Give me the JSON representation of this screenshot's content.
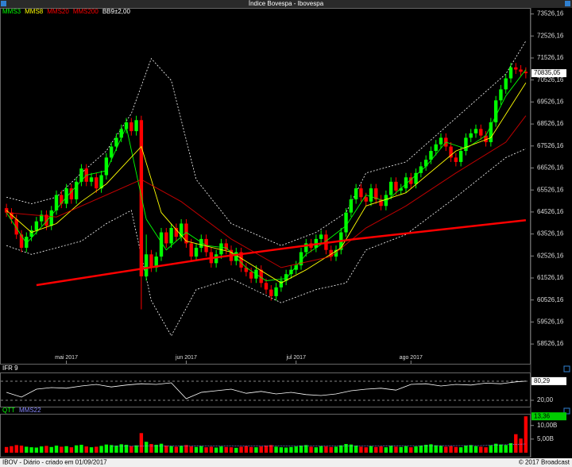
{
  "title": "Índice Bovespa - Ibovespa",
  "footer": {
    "left": "IBOV - Diário - criado em 01/09/2017",
    "right": "© 2017 Broadcast"
  },
  "chart_data": [
    {
      "type": "candlestick",
      "xlim": [
        -0.5,
        104.5
      ],
      "xticks": [
        {
          "value": 12,
          "label": "mai 2017"
        },
        {
          "value": 36,
          "label": "jun 2017"
        },
        {
          "value": 58,
          "label": "jul 2017"
        },
        {
          "value": 81,
          "label": "ago 2017"
        }
      ],
      "ylim": [
        57700,
        73800
      ],
      "yticks": [
        {
          "value": 73526.16,
          "label": "73526,16"
        },
        {
          "value": 72526.16,
          "label": "72526,16"
        },
        {
          "value": 71526.16,
          "label": "71526,16"
        },
        {
          "value": 70526.16,
          "label": "70526,16"
        },
        {
          "value": 69526.16,
          "label": "69526,16"
        },
        {
          "value": 68526.16,
          "label": "68526,16"
        },
        {
          "value": 67526.16,
          "label": "67526,16"
        },
        {
          "value": 66526.16,
          "label": "66526,16"
        },
        {
          "value": 65526.16,
          "label": "65526,16"
        },
        {
          "value": 64526.16,
          "label": "64526,16"
        },
        {
          "value": 63526.16,
          "label": "63526,16"
        },
        {
          "value": 62526.16,
          "label": "62526,16"
        },
        {
          "value": 61526.16,
          "label": "61526,16"
        },
        {
          "value": 60526.16,
          "label": "60526,16"
        },
        {
          "value": 59526.16,
          "label": "59526,16"
        },
        {
          "value": 58526.16,
          "label": "58526,16"
        }
      ],
      "up_color": "#00ff00",
      "down_color": "#ff0000",
      "open": [
        64700,
        64500,
        64200,
        63500,
        62900,
        63400,
        63700,
        64100,
        64400,
        63900,
        64600,
        65300,
        64900,
        65600,
        65100,
        65900,
        66500,
        65900,
        66100,
        65600,
        66200,
        67000,
        67500,
        67900,
        68300,
        68600,
        68200,
        68700,
        61600,
        62600,
        62000,
        62500,
        63600,
        63100,
        63800,
        63400,
        64000,
        63100,
        62500,
        62900,
        63300,
        62700,
        62200,
        62600,
        63100,
        62800,
        62300,
        62700,
        62000,
        61800,
        61500,
        61900,
        61300,
        61000,
        60700,
        61100,
        61400,
        61700,
        61900,
        62100,
        62700,
        63100,
        62900,
        63300,
        63500,
        62800,
        62500,
        62800,
        63600,
        64500,
        65100,
        65600,
        65200,
        65000,
        65600,
        65100,
        64800,
        65300,
        65900,
        65500,
        65600,
        66100,
        65800,
        66300,
        66600,
        66900,
        67300,
        67600,
        67900,
        67500,
        67000,
        66800,
        67300,
        67900,
        68100,
        68300,
        68000,
        67700,
        68600,
        69600,
        70100,
        70600,
        71100,
        71000,
        70900
      ],
      "high": [
        64900,
        64700,
        64400,
        63700,
        63600,
        63900,
        64300,
        64600,
        64600,
        64800,
        65500,
        65500,
        65800,
        65800,
        66100,
        66700,
        66700,
        66300,
        66300,
        66400,
        67200,
        67700,
        68100,
        68500,
        68800,
        68800,
        68900,
        68900,
        63500,
        62800,
        62700,
        63800,
        63800,
        64000,
        64000,
        64200,
        64200,
        63300,
        63100,
        63500,
        63500,
        62900,
        62800,
        63300,
        63300,
        63000,
        62900,
        62900,
        62200,
        62000,
        62100,
        62100,
        61500,
        61200,
        61300,
        61600,
        61900,
        62100,
        62300,
        62900,
        63300,
        63300,
        63500,
        63700,
        63700,
        63000,
        63000,
        63800,
        64700,
        65300,
        65800,
        65800,
        65400,
        65800,
        65800,
        65300,
        65500,
        66100,
        66100,
        65800,
        66300,
        66300,
        66500,
        66800,
        67100,
        67500,
        67800,
        68100,
        68100,
        67700,
        67200,
        67500,
        68100,
        68300,
        68500,
        68500,
        68200,
        68800,
        69800,
        70300,
        70800,
        71300,
        71300,
        71200,
        71100
      ],
      "low": [
        64300,
        64000,
        63300,
        62700,
        62700,
        63200,
        63500,
        63900,
        63700,
        63700,
        64400,
        64700,
        64700,
        64900,
        64900,
        65700,
        65700,
        65700,
        65400,
        65400,
        66000,
        66800,
        67300,
        67700,
        68100,
        68000,
        68000,
        60100,
        61400,
        61800,
        61800,
        62300,
        62900,
        62900,
        63200,
        63200,
        62900,
        62300,
        62300,
        62700,
        62500,
        62000,
        62000,
        62400,
        62600,
        62100,
        62100,
        61800,
        61600,
        61300,
        61300,
        61100,
        60800,
        60500,
        60500,
        60900,
        61200,
        61500,
        61700,
        61900,
        62500,
        62700,
        62700,
        63100,
        62600,
        62300,
        62300,
        62600,
        63400,
        64300,
        64900,
        65000,
        64800,
        64800,
        64900,
        64600,
        64600,
        65100,
        65300,
        65300,
        65400,
        65600,
        65600,
        66100,
        66400,
        66700,
        67100,
        67400,
        67300,
        66800,
        66600,
        66600,
        67100,
        67700,
        67900,
        67800,
        67500,
        67500,
        68400,
        69400,
        69900,
        70400,
        70800,
        70700,
        70600
      ],
      "close": [
        64500,
        64200,
        63500,
        62900,
        63400,
        63700,
        64100,
        64400,
        63900,
        64600,
        65300,
        64900,
        65600,
        65100,
        65900,
        66500,
        65900,
        66100,
        65600,
        66200,
        67000,
        67500,
        67900,
        68300,
        68600,
        68200,
        68700,
        61600,
        62600,
        62000,
        62500,
        63600,
        63100,
        63800,
        63400,
        64000,
        63100,
        62500,
        62900,
        63300,
        62700,
        62200,
        62600,
        63100,
        62800,
        62300,
        62700,
        62000,
        61800,
        61500,
        61900,
        61300,
        61000,
        60700,
        61100,
        61400,
        61700,
        61900,
        62100,
        62700,
        63100,
        62900,
        63300,
        63500,
        62800,
        62500,
        62800,
        63600,
        64500,
        65100,
        65600,
        65200,
        65000,
        65600,
        65100,
        64800,
        65300,
        65900,
        65500,
        65600,
        66100,
        65800,
        66300,
        66600,
        66900,
        67300,
        67600,
        67900,
        67500,
        67000,
        66800,
        67300,
        67900,
        68100,
        68300,
        68000,
        67700,
        68600,
        69600,
        70100,
        70600,
        71100,
        71000,
        70900,
        70835.05
      ],
      "current": {
        "value": 70835.05,
        "label": "70835,05"
      },
      "series": [
        {
          "name": "MMS3",
          "color": "#00ff00",
          "x": [
            0,
            4,
            8,
            12,
            16,
            20,
            24,
            28,
            32,
            36,
            40,
            44,
            48,
            52,
            56,
            60,
            64,
            68,
            72,
            76,
            80,
            84,
            88,
            92,
            96,
            100,
            104
          ],
          "values": [
            64500,
            63100,
            64100,
            65200,
            66200,
            66400,
            68400,
            64200,
            62800,
            63600,
            63000,
            62900,
            62000,
            61400,
            61500,
            62600,
            63200,
            63900,
            65300,
            65000,
            65800,
            66600,
            67700,
            67400,
            68000,
            69800,
            71000
          ]
        },
        {
          "name": "MMS8",
          "color": "#ffff00",
          "x": [
            0,
            5,
            10,
            15,
            20,
            27,
            31,
            36,
            45,
            55,
            60,
            67,
            72,
            80,
            90,
            97,
            104
          ],
          "values": [
            64600,
            63600,
            64000,
            65000,
            65800,
            67500,
            64500,
            63200,
            62700,
            61300,
            61900,
            62900,
            64800,
            65400,
            67300,
            67900,
            70400
          ]
        },
        {
          "name": "MMS20",
          "color": "#ff0000",
          "x": [
            0,
            10,
            20,
            27,
            35,
            45,
            55,
            65,
            72,
            80,
            90,
            100,
            104
          ],
          "values": [
            64500,
            64300,
            65300,
            66000,
            65000,
            63300,
            62000,
            62500,
            63800,
            64800,
            66300,
            67700,
            68900
          ]
        },
        {
          "name": "MMS200",
          "color": "#ff0000",
          "x": [
            6,
            40,
            70,
            104
          ],
          "values": [
            61200,
            62400,
            63300,
            64150
          ]
        }
      ],
      "bands": {
        "name": "BB9±2,00",
        "color": "#ffffff",
        "x": [
          0,
          5,
          10,
          15,
          20,
          25,
          29,
          33,
          38,
          45,
          55,
          62,
          68,
          72,
          80,
          90,
          100,
          104
        ],
        "upper": [
          65200,
          64900,
          65200,
          66300,
          67300,
          69000,
          71500,
          70500,
          66000,
          64000,
          63000,
          63600,
          64500,
          66300,
          66800,
          68800,
          70800,
          72300
        ],
        "lower": [
          63000,
          62600,
          62900,
          63200,
          64000,
          64600,
          60500,
          58900,
          61000,
          61500,
          60400,
          61000,
          61300,
          62800,
          63500,
          65200,
          67000,
          67400
        ]
      }
    },
    {
      "type": "line",
      "title": "IFR 9",
      "xlim": [
        -0.5,
        104.5
      ],
      "ylim": [
        0,
        100
      ],
      "yticks": [
        {
          "value": 20,
          "label": "20,00"
        }
      ],
      "reference_lines": [
        80,
        20
      ],
      "current": {
        "value": 80.29,
        "label": "80,29"
      },
      "series": [
        {
          "name": "IFR 9",
          "color": "#ffffff",
          "x": [
            0,
            3,
            6,
            9,
            12,
            15,
            18,
            21,
            24,
            27,
            30,
            33,
            36,
            39,
            42,
            45,
            48,
            51,
            54,
            57,
            60,
            63,
            66,
            69,
            72,
            75,
            78,
            81,
            84,
            87,
            90,
            93,
            96,
            99,
            102,
            104
          ],
          "values": [
            45,
            30,
            55,
            60,
            58,
            65,
            70,
            62,
            68,
            72,
            70,
            75,
            25,
            45,
            50,
            55,
            42,
            48,
            40,
            45,
            38,
            35,
            40,
            50,
            55,
            58,
            52,
            70,
            72,
            65,
            70,
            68,
            74,
            72,
            78,
            80.29
          ]
        }
      ]
    },
    {
      "type": "bar",
      "xlim": [
        -0.5,
        104.5
      ],
      "ylim": [
        0,
        14
      ],
      "yticks": [
        {
          "value": 10,
          "label": "10,00B"
        },
        {
          "value": 5,
          "label": "5,00B"
        }
      ],
      "current": {
        "value": 13.36,
        "label": "13,36"
      },
      "series": [
        {
          "name": "QTT",
          "color": "#00ff00",
          "values": [
            2.1,
            2.4,
            2.8,
            2.6,
            2.2,
            2.0,
            1.9,
            2.3,
            2.5,
            2.1,
            2.6,
            2.2,
            2.4,
            2.0,
            2.7,
            2.9,
            2.3,
            2.0,
            2.2,
            2.5,
            3.0,
            2.8,
            2.6,
            3.1,
            2.9,
            2.4,
            2.7,
            7.2,
            4.0,
            3.2,
            2.9,
            3.3,
            2.6,
            2.4,
            2.2,
            2.5,
            2.8,
            2.3,
            2.1,
            2.4,
            2.0,
            2.2,
            1.9,
            2.3,
            2.1,
            2.0,
            1.8,
            2.2,
            2.4,
            2.1,
            2.0,
            2.3,
            2.6,
            2.8,
            2.2,
            2.0,
            1.9,
            2.1,
            2.3,
            2.6,
            2.8,
            2.2,
            2.0,
            2.4,
            2.3,
            2.1,
            2.2,
            2.7,
            3.2,
            3.0,
            2.6,
            2.2,
            2.0,
            2.4,
            2.1,
            2.3,
            2.0,
            2.5,
            2.2,
            2.1,
            2.4,
            2.0,
            2.3,
            2.6,
            2.9,
            3.1,
            2.7,
            2.5,
            2.2,
            2.4,
            2.1,
            2.0,
            2.6,
            2.8,
            2.4,
            2.2,
            2.0,
            2.7,
            3.3,
            3.0,
            2.8,
            3.5,
            6.8,
            5.2,
            13.36
          ]
        },
        {
          "name": "MMS22",
          "color": "#8888ff",
          "type": "line",
          "x": [
            21,
            40,
            70,
            95,
            104
          ],
          "values": [
            2.4,
            2.5,
            2.5,
            2.6,
            3.2
          ]
        }
      ]
    }
  ]
}
